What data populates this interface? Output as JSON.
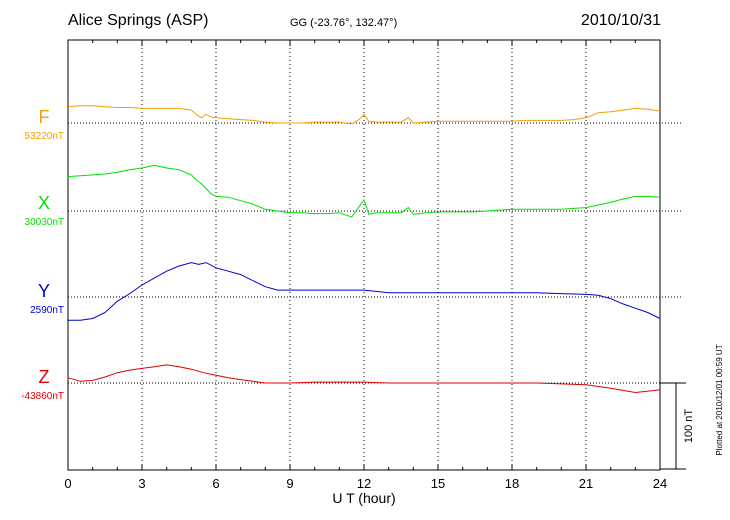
{
  "chart_data": {
    "type": "line",
    "title": "Alice Springs (ASP)",
    "subtitle": "GG (-23.76°, 132.47°)",
    "date": "2010/10/31",
    "xlabel": "U T (hour)",
    "xlim": [
      0,
      24
    ],
    "x_ticks": [
      0,
      3,
      6,
      9,
      12,
      15,
      18,
      21,
      24
    ],
    "grid": true,
    "scale_bar_label": "100 nT",
    "scale_bar_nT": 100,
    "plot_note": "Plotted at 2010/12/01 00:59 UT",
    "series": [
      {
        "name": "F",
        "baseline_label": "53220nT",
        "baseline_nT": 53220,
        "color": "#f0a000",
        "x": [
          0,
          0.5,
          1,
          1.5,
          2,
          2.5,
          3,
          3.5,
          4,
          4.5,
          5,
          5.2,
          5.4,
          5.6,
          5.8,
          6,
          6.5,
          7,
          7.5,
          8,
          8.5,
          9,
          9.5,
          10,
          10.5,
          11,
          11.5,
          11.8,
          12,
          12.2,
          12.5,
          13,
          13.5,
          13.8,
          14,
          14.5,
          15,
          15.5,
          16,
          16.5,
          17,
          17.5,
          18,
          18.5,
          19,
          19.5,
          20,
          20.5,
          21,
          21.5,
          22,
          22.5,
          23,
          23.5,
          24
        ],
        "values": [
          19,
          20,
          20,
          19,
          18,
          18,
          17,
          17,
          17,
          17,
          15,
          10,
          6,
          10,
          7,
          6,
          5,
          4,
          3,
          1,
          0,
          0,
          0,
          1,
          1,
          1,
          -1,
          4,
          10,
          2,
          1,
          1,
          1,
          6,
          0,
          1,
          2,
          2,
          2,
          2,
          2,
          2,
          2,
          3,
          3,
          3,
          3,
          4,
          6,
          12,
          13,
          15,
          17,
          16,
          14
        ]
      },
      {
        "name": "X",
        "baseline_label": "30030nT",
        "baseline_nT": 30030,
        "color": "#00e000",
        "x": [
          0,
          0.5,
          1,
          1.5,
          2,
          2.5,
          3,
          3.5,
          4,
          4.5,
          5,
          5.2,
          5.4,
          5.6,
          5.8,
          6,
          6.5,
          7,
          7.5,
          8,
          8.5,
          9,
          9.5,
          10,
          10.5,
          11,
          11.5,
          11.8,
          12,
          12.2,
          12.5,
          13,
          13.5,
          13.8,
          14,
          14.5,
          15,
          15.5,
          16,
          16.5,
          17,
          17.5,
          18,
          18.5,
          19,
          19.5,
          20,
          20.5,
          21,
          21.5,
          22,
          22.5,
          23,
          23.5,
          24
        ],
        "values": [
          40,
          41,
          42,
          43,
          45,
          48,
          50,
          53,
          50,
          48,
          42,
          36,
          32,
          26,
          20,
          17,
          16,
          12,
          8,
          2,
          0,
          -2,
          -2,
          -3,
          -3,
          -2,
          -7,
          5,
          13,
          -4,
          -2,
          -2,
          -2,
          4,
          -4,
          -2,
          -1,
          -1,
          -1,
          -1,
          0,
          1,
          2,
          2,
          2,
          2,
          2,
          3,
          4,
          7,
          10,
          14,
          17,
          17,
          16
        ]
      },
      {
        "name": "Y",
        "baseline_label": "2590nT",
        "baseline_nT": 2590,
        "color": "#0000d0",
        "x": [
          0,
          0.5,
          1,
          1.5,
          2,
          2.5,
          3,
          3.5,
          4,
          4.5,
          5,
          5.3,
          5.6,
          6,
          6.5,
          7,
          7.5,
          8,
          8.5,
          9,
          10,
          11,
          12,
          13,
          14,
          15,
          16,
          17,
          18,
          19,
          20,
          21,
          21.5,
          22,
          22.5,
          23,
          23.5,
          24
        ],
        "values": [
          -27,
          -27,
          -25,
          -18,
          -5,
          4,
          14,
          22,
          30,
          36,
          40,
          38,
          40,
          34,
          30,
          26,
          19,
          12,
          8,
          8,
          8,
          8,
          8,
          5,
          5,
          5,
          5,
          5,
          5,
          5,
          4,
          3,
          2,
          -2,
          -8,
          -13,
          -18,
          -25
        ]
      },
      {
        "name": "Z",
        "baseline_label": "-43860nT",
        "baseline_nT": -43860,
        "color": "#e00000",
        "x": [
          0,
          0.5,
          1,
          1.5,
          2,
          2.5,
          3,
          3.5,
          4,
          4.5,
          5,
          5.5,
          6,
          6.5,
          7,
          7.5,
          8,
          9,
          10,
          11,
          12,
          13,
          14,
          15,
          16,
          17,
          18,
          19,
          20,
          21,
          22,
          23,
          24
        ],
        "values": [
          6,
          2,
          3,
          7,
          12,
          15,
          17,
          19,
          21,
          19,
          16,
          12,
          9,
          6,
          4,
          2,
          0,
          0,
          1,
          1,
          1,
          0,
          0,
          0,
          0,
          0,
          0,
          0,
          -1,
          -2,
          -6,
          -11,
          -8
        ]
      }
    ]
  }
}
